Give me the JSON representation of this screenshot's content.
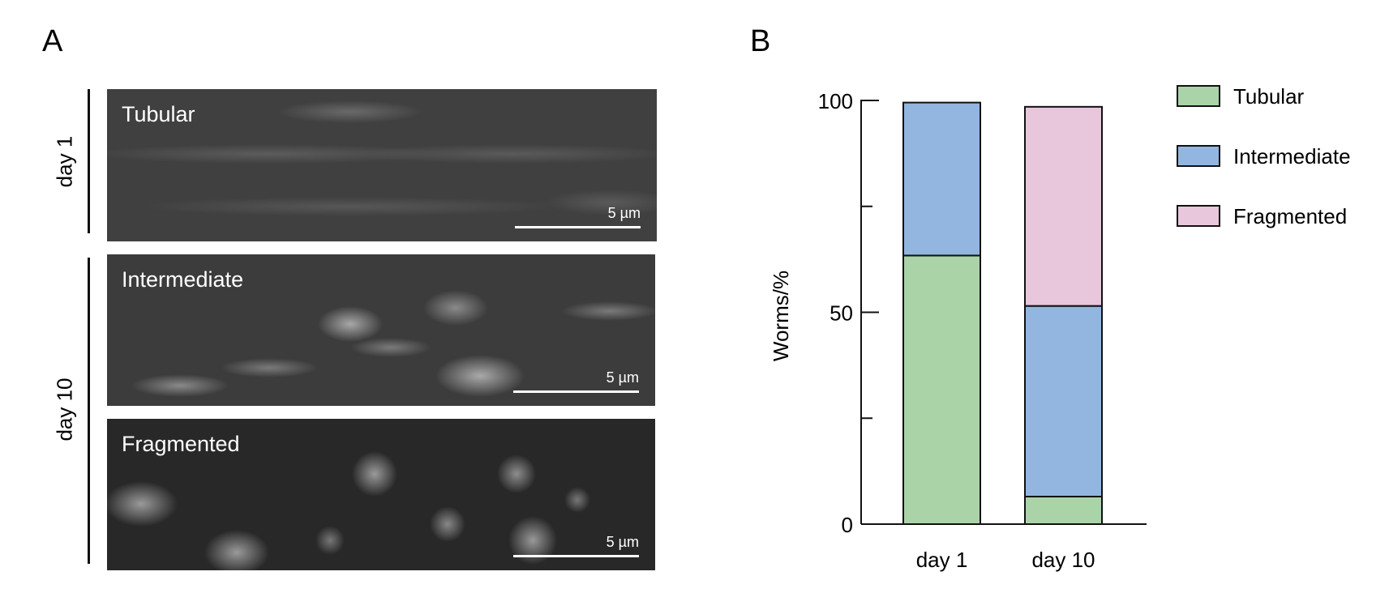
{
  "panel_a": {
    "letter": "A",
    "day1_label": "day 1",
    "day10_label": "day 10",
    "images": [
      {
        "label": "Tubular",
        "scale": "5 µm"
      },
      {
        "label": "Intermediate",
        "scale": "5 µm"
      },
      {
        "label": "Fragmented",
        "scale": "5 µm"
      }
    ]
  },
  "panel_b": {
    "letter": "B"
  },
  "chart_data": {
    "type": "bar",
    "stacked": true,
    "categories": [
      "day 1",
      "day 10"
    ],
    "series": [
      {
        "name": "Tubular",
        "color": "#aad4a8",
        "values": [
          63.4,
          6.5
        ]
      },
      {
        "name": "Intermediate",
        "color": "#92b6df",
        "values": [
          36.1,
          45
        ]
      },
      {
        "name": "Fragmented",
        "color": "#e8c6dc",
        "values": [
          0,
          47
        ]
      }
    ],
    "ylabel": "Worms/%",
    "ylim": [
      0,
      100
    ],
    "yticks": [
      0,
      25,
      50,
      75,
      100
    ],
    "ytick_labels": [
      "0",
      "",
      "50",
      "",
      "100"
    ],
    "legend": "right",
    "grid": false
  }
}
